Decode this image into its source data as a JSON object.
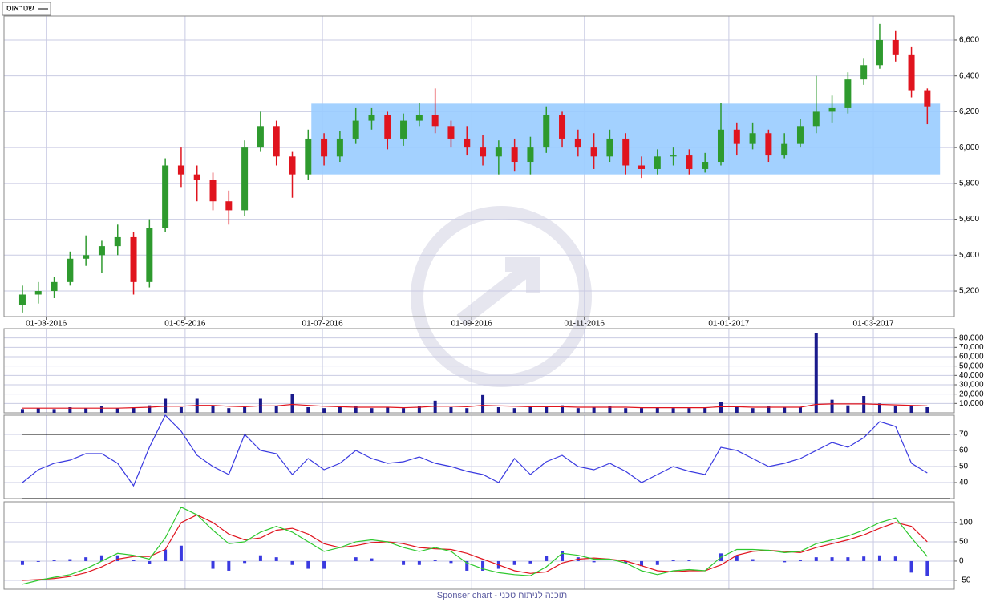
{
  "footer": "Sponser chart - תוכנה לניתוח טכני",
  "chart_data": [
    {
      "type": "candlestick",
      "series_name": "שטראוס",
      "up_color": "#2e9a2e",
      "down_color": "#e0141e",
      "grid": true,
      "xlim": [
        -1.16,
        58.7
      ],
      "xticks": [
        {
          "value": 1.5,
          "label": "01-03-2016"
        },
        {
          "value": 10.25,
          "label": "01-05-2016"
        },
        {
          "value": 18.9,
          "label": "01-07-2016"
        },
        {
          "value": 28.3,
          "label": "01-09-2016"
        },
        {
          "value": 35.4,
          "label": "01-11-2016"
        },
        {
          "value": 44.5,
          "label": "01-01-2017"
        },
        {
          "value": 53.6,
          "label": "01-03-2017"
        }
      ],
      "ylim": [
        5057,
        6734
      ],
      "yticks": [
        {
          "value": 5200,
          "label": "5,200"
        },
        {
          "value": 5400,
          "label": "5,400"
        },
        {
          "value": 5600,
          "label": "5,600"
        },
        {
          "value": 5800,
          "label": "5,800"
        },
        {
          "value": 6000,
          "label": "6,000"
        },
        {
          "value": 6200,
          "label": "6,200"
        },
        {
          "value": 6400,
          "label": "6,400"
        },
        {
          "value": 6600,
          "label": "6,600"
        }
      ],
      "highlight_zone": {
        "x": [
          18.2,
          57.8
        ],
        "y": [
          5850,
          6245
        ],
        "color": "#99ccff"
      },
      "open": [
        5120,
        5180,
        5200,
        5250,
        5380,
        5400,
        5450,
        5500,
        5250,
        5550,
        5900,
        5850,
        5820,
        5700,
        5650,
        6000,
        6120,
        5950,
        5850,
        6050,
        5950,
        6050,
        6150,
        6180,
        6050,
        6150,
        6180,
        6120,
        6050,
        6000,
        5950,
        6000,
        5920,
        6000,
        6180,
        6050,
        6000,
        5950,
        6050,
        5900,
        5880,
        5950,
        5960,
        5880,
        5920,
        6100,
        6020,
        6080,
        5960,
        6020,
        6120,
        6200,
        6220,
        6380,
        6460,
        6600,
        6520,
        6320
      ],
      "high": [
        5230,
        5250,
        5280,
        5420,
        5510,
        5480,
        5570,
        5530,
        5600,
        5940,
        6000,
        5900,
        5860,
        5760,
        6040,
        6200,
        6150,
        5980,
        6100,
        6080,
        6090,
        6220,
        6220,
        6200,
        6190,
        6250,
        6330,
        6150,
        6120,
        6070,
        6040,
        6050,
        6060,
        6230,
        6200,
        6100,
        6080,
        6100,
        6080,
        5950,
        5990,
        6000,
        5990,
        5970,
        6250,
        6140,
        6140,
        6100,
        6080,
        6160,
        6400,
        6290,
        6420,
        6500,
        6690,
        6650,
        6560,
        6330
      ],
      "low": [
        5080,
        5130,
        5160,
        5230,
        5340,
        5300,
        5400,
        5180,
        5220,
        5530,
        5780,
        5700,
        5650,
        5570,
        5620,
        5980,
        5900,
        5720,
        5820,
        5900,
        5920,
        6020,
        6100,
        5990,
        6010,
        6120,
        6080,
        6000,
        5960,
        5900,
        5850,
        5870,
        5850,
        5970,
        6000,
        5950,
        5880,
        5920,
        5850,
        5830,
        5850,
        5900,
        5850,
        5860,
        5900,
        5960,
        5990,
        5920,
        5940,
        6000,
        6080,
        6140,
        6190,
        6350,
        6440,
        6480,
        6280,
        6130
      ],
      "close": [
        5180,
        5200,
        5250,
        5380,
        5400,
        5450,
        5500,
        5250,
        5550,
        5900,
        5850,
        5820,
        5700,
        5650,
        6000,
        6120,
        5950,
        5850,
        6050,
        5950,
        6050,
        6150,
        6180,
        6050,
        6150,
        6180,
        6120,
        6050,
        6000,
        5950,
        6000,
        5920,
        6000,
        6180,
        6050,
        6000,
        5950,
        6050,
        5900,
        5880,
        5950,
        5960,
        5880,
        5920,
        6100,
        6020,
        6080,
        5960,
        6020,
        6120,
        6200,
        6220,
        6380,
        6460,
        6600,
        6520,
        6320,
        6230
      ]
    },
    {
      "type": "bar",
      "color": "#1a1a8c",
      "line_color": "#e0141e",
      "grid": true,
      "xlim": [
        -1.16,
        58.7
      ],
      "ylim": [
        0,
        90000
      ],
      "yticks": [
        {
          "value": 10000,
          "label": "10,000"
        },
        {
          "value": 20000,
          "label": "20,000"
        },
        {
          "value": 30000,
          "label": "30,000"
        },
        {
          "value": 40000,
          "label": "40,000"
        },
        {
          "value": 50000,
          "label": "50,000"
        },
        {
          "value": 60000,
          "label": "60,000"
        },
        {
          "value": 70000,
          "label": "70,000"
        },
        {
          "value": 80000,
          "label": "80,000"
        }
      ],
      "values": [
        4000,
        5000,
        4000,
        6000,
        5000,
        7000,
        5000,
        6000,
        8000,
        15000,
        6000,
        15000,
        7000,
        5000,
        6000,
        15000,
        7000,
        20000,
        6000,
        5000,
        6000,
        7000,
        5000,
        6000,
        5000,
        7000,
        13000,
        6000,
        5000,
        19000,
        6000,
        5000,
        7000,
        6000,
        8000,
        5000,
        6000,
        7000,
        5000,
        5000,
        6000,
        5000,
        5000,
        6000,
        12000,
        6000,
        5000,
        7000,
        6000,
        6000,
        85000,
        14000,
        8000,
        18000,
        10000,
        7000,
        8000,
        6000
      ],
      "line_values": [
        5000,
        5000,
        5000,
        5000,
        5000,
        5000,
        5000,
        5500,
        6000,
        7000,
        7000,
        8000,
        8000,
        7000,
        6500,
        7500,
        7500,
        9000,
        8000,
        7000,
        6500,
        6000,
        6000,
        6000,
        5500,
        6000,
        7000,
        7000,
        6500,
        8000,
        7500,
        7000,
        6500,
        6500,
        6500,
        6000,
        6000,
        6000,
        6000,
        5500,
        5500,
        5500,
        5500,
        5500,
        6500,
        6500,
        6000,
        6000,
        6000,
        6000,
        9000,
        9500,
        9500,
        9500,
        9000,
        8500,
        8000,
        7500
      ]
    },
    {
      "type": "line",
      "color": "#3a3ae0",
      "reference_color": "#000000",
      "grid": true,
      "xlim": [
        -1.16,
        58.7
      ],
      "ylim": [
        30,
        82
      ],
      "yticks": [
        40,
        50,
        60,
        70
      ],
      "reference_lines": [
        70,
        30
      ],
      "values": [
        40,
        48,
        52,
        54,
        58,
        58,
        52,
        38,
        62,
        82,
        72,
        57,
        50,
        45,
        70,
        60,
        58,
        45,
        55,
        48,
        52,
        60,
        55,
        52,
        53,
        56,
        52,
        50,
        47,
        45,
        40,
        55,
        45,
        53,
        57,
        50,
        48,
        52,
        47,
        40,
        45,
        50,
        47,
        45,
        62,
        60,
        55,
        50,
        52,
        55,
        60,
        65,
        62,
        68,
        78,
        75,
        52,
        46
      ]
    },
    {
      "type": "macd",
      "macd_color": "#2ec82e",
      "signal_color": "#e0141e",
      "histogram_color": "#3a3ae0",
      "grid": true,
      "xlim": [
        -1.16,
        58.7
      ],
      "ylim": [
        -73,
        154
      ],
      "yticks": [
        -50,
        0,
        50,
        100
      ],
      "macd": [
        -60,
        -50,
        -42,
        -35,
        -20,
        0,
        20,
        15,
        5,
        60,
        140,
        120,
        80,
        45,
        50,
        75,
        90,
        75,
        50,
        25,
        35,
        50,
        55,
        50,
        35,
        25,
        35,
        25,
        -5,
        -20,
        -30,
        -35,
        -38,
        -15,
        20,
        15,
        5,
        5,
        -5,
        -25,
        -35,
        -25,
        -22,
        -25,
        10,
        30,
        30,
        28,
        22,
        25,
        45,
        55,
        65,
        80,
        100,
        112,
        60,
        12
      ],
      "signal": [
        -50,
        -48,
        -45,
        -40,
        -30,
        -15,
        5,
        12,
        12,
        30,
        100,
        120,
        100,
        70,
        55,
        60,
        80,
        85,
        70,
        45,
        35,
        40,
        48,
        50,
        45,
        35,
        32,
        30,
        20,
        5,
        -10,
        -25,
        -32,
        -28,
        -5,
        5,
        8,
        5,
        0,
        -12,
        -25,
        -28,
        -25,
        -25,
        -10,
        15,
        25,
        28,
        25,
        22,
        35,
        45,
        55,
        68,
        85,
        100,
        90,
        50
      ],
      "histogram": [
        -10,
        -2,
        3,
        5,
        10,
        15,
        15,
        3,
        -7,
        30,
        40,
        0,
        -20,
        -25,
        -5,
        15,
        10,
        -10,
        -20,
        -20,
        0,
        10,
        7,
        0,
        -10,
        -10,
        3,
        -5,
        -25,
        -25,
        -20,
        -10,
        -6,
        13,
        25,
        10,
        -3,
        0,
        -5,
        -13,
        -10,
        3,
        3,
        0,
        20,
        15,
        5,
        0,
        -3,
        3,
        10,
        10,
        10,
        12,
        15,
        12,
        -30,
        -38
      ]
    }
  ]
}
